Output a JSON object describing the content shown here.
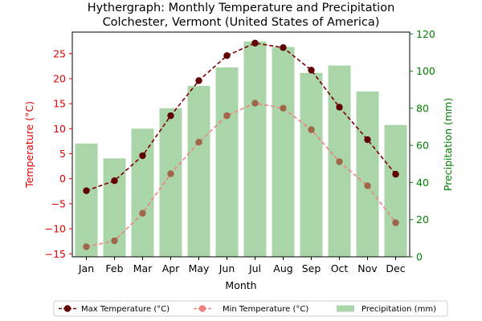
{
  "chart_data": {
    "type": "bar+line",
    "title": "Hythergraph: Monthly Temperature and Precipitation\nColchester, Vermont (United States of America)",
    "xlabel": "Month",
    "ylabel_left": "Temperature (°C)",
    "ylabel_right": "Precipitation (mm)",
    "categories": [
      "Jan",
      "Feb",
      "Mar",
      "Apr",
      "May",
      "Jun",
      "Jul",
      "Aug",
      "Sep",
      "Oct",
      "Nov",
      "Dec"
    ],
    "ylim_left": [
      -15.6,
      29.3
    ],
    "ylim_right": [
      0,
      121
    ],
    "yticks_left": [
      -15,
      -10,
      -5,
      0,
      5,
      10,
      15,
      20,
      25
    ],
    "yticks_right": [
      0,
      20,
      40,
      60,
      80,
      100,
      120
    ],
    "ytick_labels_left": [
      "−15",
      "−10",
      "−5",
      "0",
      "5",
      "10",
      "15",
      "20",
      "25"
    ],
    "ytick_labels_right": [
      "0",
      "20",
      "40",
      "60",
      "80",
      "100",
      "120"
    ],
    "legend_position": "bottom-center",
    "grid": false,
    "colors": {
      "max_temp": "#7f0000",
      "max_temp_marker": "#600000",
      "min_temp_line": "#f08080",
      "min_temp_marker": "#a0664a",
      "precip": "#a9d5a9",
      "left_axis": "#e00000",
      "right_axis": "#008000"
    },
    "series": [
      {
        "name": "Max Temperature (°C)",
        "axis": "left",
        "kind": "line",
        "values": [
          -2.4,
          -0.4,
          4.6,
          12.6,
          19.6,
          24.6,
          27.1,
          26.2,
          21.7,
          14.3,
          7.8,
          0.9
        ]
      },
      {
        "name": "Min Temperature (°C)",
        "axis": "left",
        "kind": "line",
        "values": [
          -13.6,
          -12.4,
          -6.9,
          1.0,
          7.3,
          12.6,
          15.1,
          14.1,
          9.8,
          3.4,
          -1.4,
          -8.8
        ]
      },
      {
        "name": "Precipitation (mm)",
        "axis": "right",
        "kind": "bar",
        "values": [
          61,
          53,
          69,
          80,
          92,
          102,
          116,
          113,
          99,
          103,
          89,
          71
        ]
      }
    ]
  }
}
